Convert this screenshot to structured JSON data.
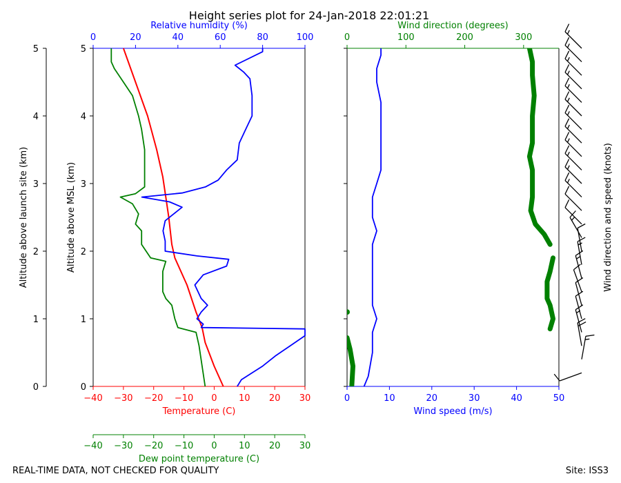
{
  "title": "Height series plot for 24-Jan-2018 22:01:21",
  "footer_left": "REAL-TIME DATA, NOT CHECKED FOR QUALITY",
  "footer_right": "Site: ISS3",
  "colors": {
    "temperature": "#ff0000",
    "humidity": "#0000ff",
    "dewpoint": "#008000",
    "wind_speed": "#0000ff",
    "wind_direction": "#008000",
    "barbs": "#000000"
  },
  "chart_data": [
    {
      "type": "line",
      "name": "thermo-panel",
      "y_axes": [
        {
          "label": "Altitude above launch site (km)",
          "range": [
            0,
            5
          ],
          "ticks": [
            "0",
            "1",
            "2",
            "3",
            "4",
            "5"
          ]
        },
        {
          "label": "Altitude above MSL (km)",
          "range": [
            0,
            5
          ],
          "ticks": [
            "0",
            "1",
            "2",
            "3",
            "4",
            "5"
          ]
        }
      ],
      "x_axes": [
        {
          "label": "Temperature (C)",
          "range": [
            -40,
            30
          ],
          "ticks": [
            "−40",
            "−30",
            "−20",
            "−10",
            "0",
            "10",
            "20",
            "30"
          ],
          "color": "#ff0000"
        },
        {
          "label": "Relative humidity (%)",
          "range": [
            0,
            100
          ],
          "ticks": [
            "0",
            "20",
            "40",
            "60",
            "80",
            "100"
          ],
          "color": "#0000ff"
        },
        {
          "label": "Dew point temperature (C)",
          "range": [
            -40,
            30
          ],
          "ticks": [
            "−40",
            "−30",
            "−20",
            "−10",
            "0",
            "10",
            "20",
            "30"
          ],
          "color": "#008000"
        }
      ],
      "series": [
        {
          "name": "Temperature",
          "axis": "temperature",
          "points": [
            [
              3,
              0
            ],
            [
              0,
              0.3
            ],
            [
              -3,
              0.65
            ],
            [
              -4,
              0.87
            ],
            [
              -6,
              1.1
            ],
            [
              -9,
              1.5
            ],
            [
              -13,
              1.9
            ],
            [
              -14,
              2.1
            ],
            [
              -15,
              2.5
            ],
            [
              -16,
              2.8
            ],
            [
              -17,
              3.1
            ],
            [
              -19,
              3.5
            ],
            [
              -22,
              4.0
            ],
            [
              -26,
              4.5
            ],
            [
              -30,
              5.0
            ]
          ]
        },
        {
          "name": "Relative humidity",
          "axis": "humidity",
          "points": [
            [
              68,
              0
            ],
            [
              70,
              0.1
            ],
            [
              75,
              0.2
            ],
            [
              80,
              0.3
            ],
            [
              86,
              0.45
            ],
            [
              93,
              0.6
            ],
            [
              100,
              0.75
            ],
            [
              100,
              0.85
            ],
            [
              51,
              0.87
            ],
            [
              52,
              0.92
            ],
            [
              49,
              1.0
            ],
            [
              51,
              1.1
            ],
            [
              54,
              1.2
            ],
            [
              51,
              1.3
            ],
            [
              48,
              1.5
            ],
            [
              52,
              1.65
            ],
            [
              63,
              1.78
            ],
            [
              64,
              1.88
            ],
            [
              49,
              1.93
            ],
            [
              34,
              2.0
            ],
            [
              34,
              2.15
            ],
            [
              33,
              2.3
            ],
            [
              34,
              2.45
            ],
            [
              38,
              2.55
            ],
            [
              42,
              2.65
            ],
            [
              36,
              2.73
            ],
            [
              23,
              2.8
            ],
            [
              42,
              2.86
            ],
            [
              53,
              2.95
            ],
            [
              59,
              3.05
            ],
            [
              63,
              3.2
            ],
            [
              68,
              3.35
            ],
            [
              69,
              3.6
            ],
            [
              72,
              3.8
            ],
            [
              75,
              4.0
            ],
            [
              75,
              4.3
            ],
            [
              74,
              4.55
            ],
            [
              71,
              4.65
            ],
            [
              67,
              4.75
            ],
            [
              80,
              4.95
            ],
            [
              80,
              5.0
            ]
          ]
        },
        {
          "name": "Dew point temperature",
          "axis": "dewpoint",
          "points": [
            [
              -3,
              0
            ],
            [
              -4,
              0.3
            ],
            [
              -5,
              0.6
            ],
            [
              -6,
              0.8
            ],
            [
              -12,
              0.87
            ],
            [
              -13,
              1.0
            ],
            [
              -14,
              1.2
            ],
            [
              -16,
              1.3
            ],
            [
              -17,
              1.4
            ],
            [
              -17,
              1.7
            ],
            [
              -16,
              1.85
            ],
            [
              -21,
              1.9
            ],
            [
              -24,
              2.1
            ],
            [
              -24,
              2.3
            ],
            [
              -26,
              2.4
            ],
            [
              -25,
              2.55
            ],
            [
              -27,
              2.7
            ],
            [
              -31,
              2.8
            ],
            [
              -26,
              2.85
            ],
            [
              -23,
              2.95
            ],
            [
              -23,
              3.2
            ],
            [
              -23,
              3.5
            ],
            [
              -24,
              3.8
            ],
            [
              -25,
              4.0
            ],
            [
              -27,
              4.3
            ],
            [
              -30,
              4.5
            ],
            [
              -33,
              4.7
            ],
            [
              -34,
              4.8
            ],
            [
              -34,
              5.0
            ]
          ]
        }
      ]
    },
    {
      "type": "line",
      "name": "wind-panel",
      "y_axes": [
        {
          "label": "",
          "range": [
            0,
            5
          ]
        }
      ],
      "x_axes": [
        {
          "label": "Wind speed (m/s)",
          "range": [
            0,
            50
          ],
          "ticks": [
            "0",
            "10",
            "20",
            "30",
            "40",
            "50"
          ],
          "color": "#0000ff"
        },
        {
          "label": "Wind direction (degrees)",
          "range": [
            0,
            360
          ],
          "ticks": [
            "0",
            "100",
            "200",
            "300"
          ],
          "color": "#008000"
        }
      ],
      "series": [
        {
          "name": "Wind speed",
          "axis": "speed",
          "points": [
            [
              4,
              0
            ],
            [
              5,
              0.15
            ],
            [
              6,
              0.5
            ],
            [
              6,
              0.8
            ],
            [
              7,
              1.0
            ],
            [
              6,
              1.2
            ],
            [
              6,
              1.5
            ],
            [
              6,
              1.8
            ],
            [
              6,
              2.1
            ],
            [
              7,
              2.3
            ],
            [
              6,
              2.5
            ],
            [
              6,
              2.8
            ],
            [
              7,
              3.0
            ],
            [
              8,
              3.2
            ],
            [
              8,
              3.5
            ],
            [
              8,
              3.9
            ],
            [
              8,
              4.2
            ],
            [
              7,
              4.5
            ],
            [
              7,
              4.7
            ],
            [
              8,
              4.9
            ],
            [
              8,
              5.0
            ]
          ]
        },
        {
          "name": "Wind direction",
          "axis": "direction",
          "points": [
            [
              8,
              0
            ],
            [
              10,
              0.3
            ],
            [
              5,
              0.55
            ],
            [
              0,
              0.72
            ],
            [
              null,
              0.8
            ],
            [
              345,
              0.85
            ],
            [
              350,
              1.0
            ],
            [
              345,
              1.2
            ],
            [
              340,
              1.3
            ],
            [
              340,
              1.55
            ],
            [
              345,
              1.7
            ],
            [
              350,
              1.9
            ],
            [
              null,
              1.95
            ],
            [
              5,
              2.0
            ],
            [
              null,
              2.05
            ],
            [
              345,
              2.1
            ],
            [
              335,
              2.25
            ],
            [
              320,
              2.4
            ],
            [
              312,
              2.6
            ],
            [
              315,
              2.8
            ],
            [
              315,
              3.0
            ],
            [
              315,
              3.2
            ],
            [
              310,
              3.4
            ],
            [
              315,
              3.6
            ],
            [
              315,
              3.8
            ],
            [
              315,
              4.0
            ],
            [
              318,
              4.3
            ],
            [
              315,
              4.6
            ],
            [
              315,
              4.8
            ],
            [
              310,
              5.0
            ]
          ]
        }
      ]
    },
    {
      "type": "barbs",
      "name": "barb-panel",
      "label": "Wind direction and speed (knots)",
      "range": [
        0,
        5
      ],
      "barbs": [
        {
          "alt": 0.2,
          "dir": 250,
          "spd": 10
        },
        {
          "alt": 0.4,
          "dir": 10,
          "spd": 15
        },
        {
          "alt": 0.6,
          "dir": 350,
          "spd": 20
        },
        {
          "alt": 0.8,
          "dir": 345,
          "spd": 15
        },
        {
          "alt": 1.0,
          "dir": 345,
          "spd": 10
        },
        {
          "alt": 1.2,
          "dir": 345,
          "spd": 10
        },
        {
          "alt": 1.4,
          "dir": 340,
          "spd": 10
        },
        {
          "alt": 1.6,
          "dir": 345,
          "spd": 15
        },
        {
          "alt": 1.8,
          "dir": 350,
          "spd": 15
        },
        {
          "alt": 2.0,
          "dir": 350,
          "spd": 10
        },
        {
          "alt": 2.2,
          "dir": 330,
          "spd": 15
        },
        {
          "alt": 2.4,
          "dir": 315,
          "spd": 10
        },
        {
          "alt": 2.6,
          "dir": 315,
          "spd": 10
        },
        {
          "alt": 2.8,
          "dir": 315,
          "spd": 15
        },
        {
          "alt": 3.0,
          "dir": 315,
          "spd": 15
        },
        {
          "alt": 3.2,
          "dir": 315,
          "spd": 15
        },
        {
          "alt": 3.4,
          "dir": 315,
          "spd": 15
        },
        {
          "alt": 3.6,
          "dir": 315,
          "spd": 15
        },
        {
          "alt": 3.8,
          "dir": 315,
          "spd": 15
        },
        {
          "alt": 4.0,
          "dir": 315,
          "spd": 15
        },
        {
          "alt": 4.2,
          "dir": 315,
          "spd": 15
        },
        {
          "alt": 4.4,
          "dir": 315,
          "spd": 15
        },
        {
          "alt": 4.6,
          "dir": 315,
          "spd": 15
        },
        {
          "alt": 4.8,
          "dir": 315,
          "spd": 15
        },
        {
          "alt": 5.0,
          "dir": 315,
          "spd": 15
        }
      ]
    }
  ]
}
